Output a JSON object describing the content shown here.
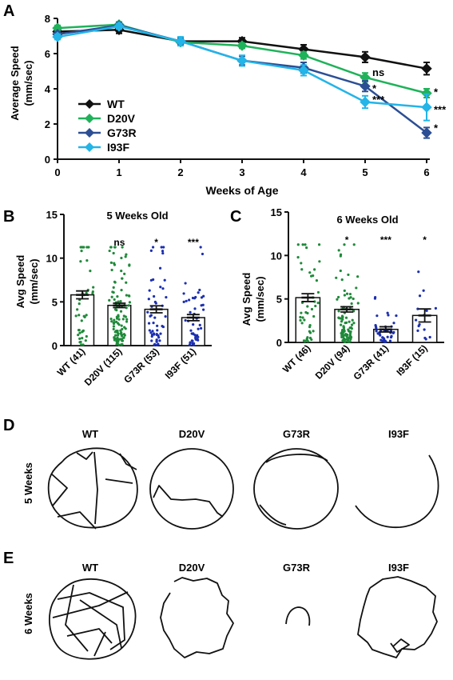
{
  "panels": {
    "A": "A",
    "B": "B",
    "C": "C",
    "D": "D",
    "E": "E"
  },
  "chart_data": [
    {
      "id": "A",
      "type": "line",
      "xlabel": "Weeks of Age",
      "ylabel": [
        "Average Speed",
        "(mm/sec)"
      ],
      "xlim": [
        0,
        6
      ],
      "ylim": [
        0,
        8
      ],
      "xticks": [
        "0",
        "1",
        "2",
        "3",
        "4",
        "5",
        "6"
      ],
      "yticks": [
        "0",
        "2",
        "4",
        "6",
        "8"
      ],
      "legend_position": "bottom-left",
      "x": [
        0,
        1,
        2,
        3,
        4,
        5,
        6
      ],
      "series": [
        {
          "name": "WT",
          "color": "#111111",
          "marker": "diamond",
          "values": [
            7.25,
            7.35,
            6.7,
            6.7,
            6.25,
            5.8,
            5.15
          ],
          "errors": [
            0.2,
            0.2,
            0.2,
            0.2,
            0.25,
            0.3,
            0.35
          ]
        },
        {
          "name": "D20V",
          "color": "#1fb25a",
          "marker": "diamond",
          "values": [
            7.45,
            7.65,
            6.65,
            6.45,
            5.9,
            4.65,
            3.75
          ],
          "errors": [
            0.15,
            0.15,
            0.15,
            0.15,
            0.2,
            0.25,
            0.25
          ]
        },
        {
          "name": "G73R",
          "color": "#2c4f94",
          "marker": "diamond",
          "values": [
            7.1,
            7.6,
            6.7,
            5.6,
            5.2,
            4.15,
            1.5
          ],
          "errors": [
            0.15,
            0.15,
            0.2,
            0.25,
            0.3,
            0.3,
            0.3
          ]
        },
        {
          "name": "I93F",
          "color": "#23b4e8",
          "marker": "diamond",
          "values": [
            6.95,
            7.55,
            6.7,
            5.6,
            5.05,
            3.25,
            2.95
          ],
          "errors": [
            0.15,
            0.15,
            0.25,
            0.3,
            0.3,
            0.35,
            0.75
          ]
        }
      ],
      "annotations": [
        {
          "x": 5,
          "y": 4.95,
          "text": "ns"
        },
        {
          "x": 5,
          "y": 4.05,
          "text": "*"
        },
        {
          "x": 5,
          "y": 3.4,
          "text": "***"
        },
        {
          "x": 6,
          "y": 3.85,
          "text": "*"
        },
        {
          "x": 6,
          "y": 2.85,
          "text": "***"
        },
        {
          "x": 6,
          "y": 1.8,
          "text": "*"
        }
      ]
    },
    {
      "id": "B",
      "type": "bar",
      "title": "5 Weeks Old",
      "ylabel": [
        "Avg Speed",
        "(mm/sec)"
      ],
      "ylim": [
        0,
        15
      ],
      "yticks": [
        "0",
        "5",
        "10",
        "15"
      ],
      "categories": [
        "WT (41)",
        "D20V (115)",
        "G73R (53)",
        "I93F (51)"
      ],
      "values": [
        5.8,
        4.6,
        4.15,
        3.2
      ],
      "errors": [
        0.45,
        0.25,
        0.4,
        0.35
      ],
      "point_counts": [
        41,
        115,
        53,
        51
      ],
      "point_colors": [
        "#1f8a3a",
        "#1f8a3a",
        "#1c2fb0",
        "#1c2fb0"
      ],
      "significance": [
        "",
        "ns",
        "*",
        "***"
      ]
    },
    {
      "id": "C",
      "type": "bar",
      "title": "6 Weeks Old",
      "ylabel": [
        "Avg Speed",
        "(mm/sec)"
      ],
      "ylim": [
        0,
        15
      ],
      "yticks": [
        "0",
        "5",
        "10",
        "15"
      ],
      "categories": [
        "WT (46)",
        "D20V (94)",
        "G73R (41)",
        "I93F (15)"
      ],
      "values": [
        5.15,
        3.8,
        1.5,
        3.1
      ],
      "errors": [
        0.45,
        0.3,
        0.3,
        0.75
      ],
      "point_counts": [
        46,
        94,
        41,
        15
      ],
      "point_colors": [
        "#1f8a3a",
        "#1f8a3a",
        "#1c2fb0",
        "#1c2fb0"
      ],
      "significance": [
        "",
        "*",
        "***",
        "*"
      ]
    }
  ],
  "tracks": {
    "D": {
      "row_label": "5 Weeks",
      "columns": [
        "WT",
        "D20V",
        "G73R",
        "I93F"
      ]
    },
    "E": {
      "row_label": "6 Weeks",
      "columns": [
        "WT",
        "D20V",
        "G73R",
        "I93F"
      ]
    }
  }
}
